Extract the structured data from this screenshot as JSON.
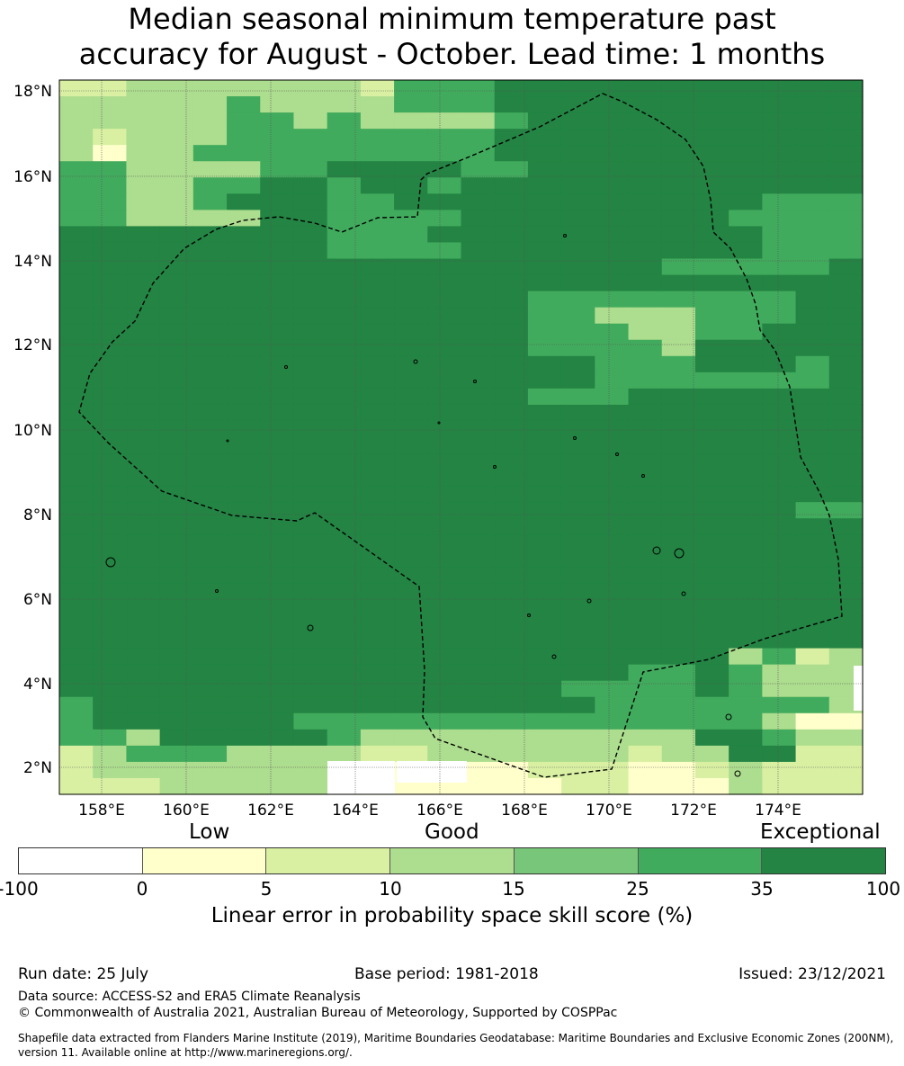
{
  "title": "Median seasonal minimum temperature past\naccuracy for August - October. Lead time: 1 months",
  "colors": {
    "white": "#ffffff",
    "pale_yellow": "#ffffcc",
    "light_yellow_green": "#d9f0a3",
    "light_green": "#addd8e",
    "medium_green": "#78c679",
    "green": "#41ab5d",
    "dark_green": "#238443"
  },
  "map": {
    "lon_labels": [
      "158°E",
      "160°E",
      "162°E",
      "164°E",
      "166°E",
      "168°E",
      "170°E",
      "172°E",
      "174°E"
    ],
    "lat_labels": [
      "18°N",
      "16°N",
      "14°N",
      "12°N",
      "10°N",
      "8°N",
      "6°N",
      "4°N",
      "2°N"
    ],
    "grid_rows": [
      "BBCCCCCCCBDDDEEEEEEEEEEE",
      "CCCCCDCCCCDDDEEEEEEEEEEE",
      "CCCCCDDCDCCCCDEEEEEEEEEE",
      "CBCCCDDDDDDDDEEEEEEEEEEE",
      "CACCDDDDDDDDDEEEEEEEEEEE",
      "DDCCCCDDEEEEDDEEEEEEEEEE",
      "DDCCDDEEDEEDEEEEEEEEEEEE",
      "DDCCDEEEDDEEEEEEEEEEEDDD",
      "DDCCCCEEDDDDEEEEEEEEDDDD",
      "EEEEEEEEDDDEEEEEEEEEEDDD",
      "EEEEEEEEDDDDEEEEEEEEEDDD",
      "EEEEEEEEEEEEEEEEEEDDDDDE",
      "EEEEEEEEEEEEEEEEEEEEEEEE",
      "EEEEEEEEEEEEEEDDDDDDDDEE",
      "EEEEEEEEEEEEEEDDCCCDDDEE",
      "EEEEEEEEEEEEEEDDDCCDDEEE",
      "EEEEEEEEEEEEEEDDDDCEEEEE",
      "EEEEEEEEEEEEEEEEDDDEEEDE",
      "EEEEEEEEEEEEEEEEDDDDDDDE",
      "EEEEEEEEEEEEEEDDDEEEEEEE",
      "EEEEEEEEEEEEEEEEEEEEEEEE",
      "EEEEEEEEEEEEEEEEEEEEEEEE",
      "EEEEEEEEEEEEEEEEEEEEEEEE",
      "EEEEEEEEEEEEEEEEEEEEEEEE",
      "EEEEEEEEEEEEEEEEEEEEEEEE",
      "EEEEEEEEEEEEEEEEEEEEEEEE",
      "EEEEEEEEEEEEEEEEEEEEEEDD",
      "EEEEEEEEEEEEEEEEEEEEEEEE",
      "EEEEEEEEEEEEEEEEEEEEEEEE",
      "EEEEEEEEEEEEEEEEEEEEEEEE",
      "EEEEEEEEEEEEEEEEEEEEEEEE",
      "EEEEEEEEEEEEEEEEEEEEEEEE",
      "EEEEEEEEEEEEEEEEEEEEEEEE",
      "EEEEEEEEEEEEEEEEEEEEEEEE",
      "EEEEEEEEEEEEEEEEEEEEEEEE",
      "EEEEEEEEEEEEEEEEEEEECDBCD",
      "EEEEEEEEEEEEEEEEEDDEDCCCB",
      "EEEEEEEEEEEEEEEDDDDEDCCCA",
      "DEEEEEEEEEEEEEEEDDDDDDDCA",
      "DEEEEEEDDDDDDDDDDDDDDCAAB",
      "DDCEEEEEDCCCCCCCCCCEEDCCB",
      "BCDDDCCCCBBCCCCCCBCCEEBBB",
      "BCCCCCCCCAAAAABBBAABCBBBB",
      "BBBCCCCCCBAAAAABBAAACBBBB"
    ]
  },
  "colorbar": {
    "categories": [
      "Low",
      "Good",
      "Exceptional"
    ],
    "ticks": [
      "-100",
      "0",
      "5",
      "10",
      "15",
      "25",
      "35",
      "100"
    ],
    "label": "Linear error in probability space skill score (%)"
  },
  "footer": {
    "run_date": "Run date: 25 July",
    "base_period": "Base period: 1981-2018",
    "issued": "Issued: 23/12/2021",
    "data_source": "Data source: ACCESS-S2 and ERA5 Climate Reanalysis",
    "copyright": "© Commonwealth of Australia 2021, Australian Bureau of Meteorology, Supported by COSPPac",
    "shapefile_note": "Shapefile data extracted from Flanders Marine Institute (2019), Maritime Boundaries Geodatabase: Maritime Boundaries and Exclusive Economic Zones (200NM), version 11. Available online at http://www.marineregions.org/."
  }
}
